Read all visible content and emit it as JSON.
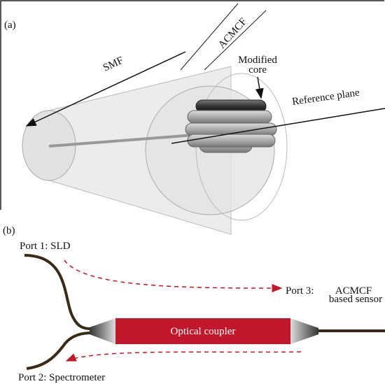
{
  "panel_a": {
    "label": "(a)",
    "smf": "SMF",
    "acmcf": "ACMCF",
    "modified_core": [
      "Modified",
      "core"
    ],
    "reference_plane": "Reference plane"
  },
  "panel_b": {
    "label": "(b)",
    "port1": "Port 1: SLD",
    "port3": "Port 3:",
    "port3_device": [
      "ACMCF",
      "based sensor"
    ],
    "coupler": "Optical coupler",
    "port2": "Port 2: Spectrometer"
  }
}
